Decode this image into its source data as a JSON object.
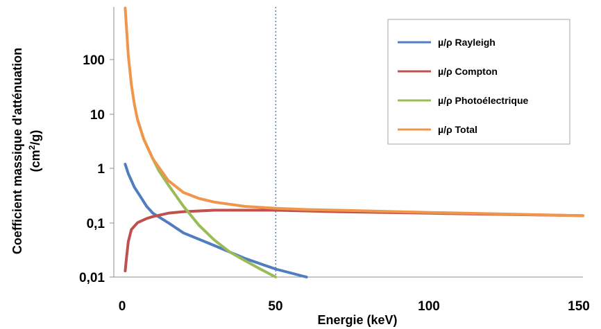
{
  "chart_data": {
    "type": "line",
    "xlabel": "Energie (keV)",
    "ylabel_line1": "Coefficient massique d'atténuation",
    "ylabel_line2_prefix": "(cm",
    "ylabel_line2_sup": "2",
    "ylabel_line2_suffix": "/g)",
    "xlim": [
      0,
      150
    ],
    "ylim": [
      0.01,
      1000
    ],
    "y_scale": "log",
    "x_ticks": [
      0,
      50,
      100,
      150
    ],
    "x_tick_labels": [
      "0",
      "50",
      "100",
      "150"
    ],
    "y_ticks": [
      0.01,
      0.1,
      1,
      10,
      100
    ],
    "y_tick_labels": [
      "0,01",
      "0,1",
      "1",
      "10",
      "100"
    ],
    "grid": false,
    "legend_position": "top-right",
    "reference_line": {
      "x": 50,
      "style": "dotted",
      "color": "#4f81bd"
    },
    "series": [
      {
        "name": "µ/ρ Rayleigh",
        "color": "#4f7dbf",
        "x": [
          1,
          2,
          4,
          6,
          8,
          10,
          15,
          20,
          30,
          40,
          50,
          60
        ],
        "y": [
          1.2,
          0.8,
          0.45,
          0.3,
          0.2,
          0.15,
          0.1,
          0.065,
          0.038,
          0.022,
          0.014,
          0.01
        ]
      },
      {
        "name": "µ/ρ Compton",
        "color": "#c0504d",
        "x": [
          1,
          1.5,
          2,
          3,
          5,
          8,
          10,
          15,
          20,
          30,
          40,
          50,
          70,
          100,
          150
        ],
        "y": [
          0.013,
          0.025,
          0.045,
          0.075,
          0.1,
          0.12,
          0.13,
          0.15,
          0.16,
          0.17,
          0.17,
          0.17,
          0.16,
          0.15,
          0.135
        ]
      },
      {
        "name": "µ/ρ Photoélectrique",
        "color": "#9bbb59",
        "x": [
          5,
          7,
          10,
          12,
          15,
          20,
          25,
          30,
          35,
          40,
          45,
          50
        ],
        "y": [
          8,
          3.5,
          1.5,
          0.9,
          0.5,
          0.2,
          0.09,
          0.048,
          0.029,
          0.02,
          0.014,
          0.01
        ]
      },
      {
        "name": "µ/ρ Total",
        "color": "#f0964b",
        "x": [
          1,
          2,
          3,
          4,
          5,
          7,
          10,
          15,
          20,
          25,
          30,
          40,
          50,
          60,
          70,
          100,
          150
        ],
        "y": [
          900,
          120,
          35,
          15,
          8,
          3.5,
          1.5,
          0.6,
          0.36,
          0.28,
          0.24,
          0.2,
          0.185,
          0.175,
          0.17,
          0.155,
          0.135
        ]
      }
    ]
  }
}
